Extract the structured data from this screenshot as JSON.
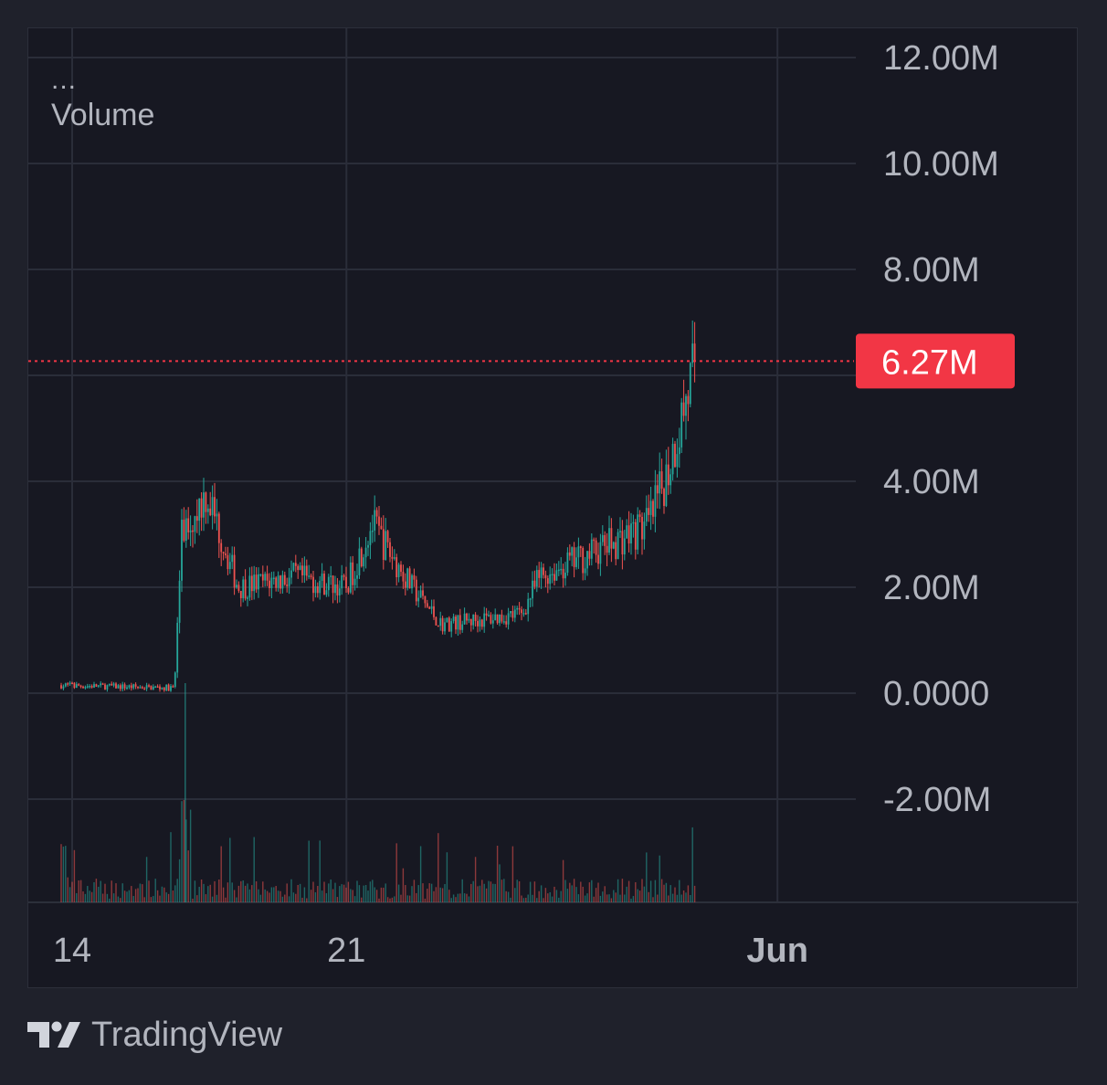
{
  "legend": {
    "more": "...",
    "title": "Volume"
  },
  "price_label": {
    "text": "6.27M",
    "value": 6270000,
    "color": "#f23645"
  },
  "branding": {
    "name": "TradingView",
    "icon": "tradingview-logo-icon"
  },
  "colors": {
    "up": "#26a69a",
    "down": "#ef5350",
    "axis_text": "#b2b5be",
    "grid": "#2a2d39"
  },
  "chart_data": {
    "type": "candlestick",
    "title": "Volume",
    "y_ticks": [
      {
        "value": 12000000,
        "label": "12.00M"
      },
      {
        "value": 10000000,
        "label": "10.00M"
      },
      {
        "value": 8000000,
        "label": "8.00M"
      },
      {
        "value": 4000000,
        "label": "4.00M"
      },
      {
        "value": 2000000,
        "label": "2.00M"
      },
      {
        "value": 0,
        "label": "0.0000"
      },
      {
        "value": -2000000,
        "label": "-2.00M"
      }
    ],
    "x_ticks": [
      {
        "date": "May 14",
        "label": "14",
        "bold": false
      },
      {
        "date": "May 21",
        "label": "21",
        "bold": false
      },
      {
        "date": "Jun 1",
        "label": "Jun",
        "bold": true
      }
    ],
    "ylim": [
      -2600000,
      12600000
    ],
    "xlim": [
      "May 13",
      "Jun 2"
    ],
    "last_value": 6270000,
    "grid": true,
    "approx_close_path": [
      {
        "date": "May 14",
        "close": 150000
      },
      {
        "date": "May 17",
        "close": 100000
      },
      {
        "date": "May 17 (breakout)",
        "close": 3000000
      },
      {
        "date": "May 18",
        "close": 3800000
      },
      {
        "date": "May 19",
        "close": 2000000
      },
      {
        "date": "May 20",
        "close": 2200000
      },
      {
        "date": "May 21",
        "close": 2000000
      },
      {
        "date": "May 22",
        "close": 3200000
      },
      {
        "date": "May 23",
        "close": 2000000
      },
      {
        "date": "May 24",
        "close": 1300000
      },
      {
        "date": "May 25",
        "close": 1400000
      },
      {
        "date": "May 26",
        "close": 1500000
      },
      {
        "date": "May 27",
        "close": 2200000
      },
      {
        "date": "May 28",
        "close": 2600000
      },
      {
        "date": "May 29",
        "close": 3200000
      },
      {
        "date": "May 30",
        "close": 4200000
      },
      {
        "date": "May 30 (last)",
        "close": 6270000
      }
    ]
  }
}
